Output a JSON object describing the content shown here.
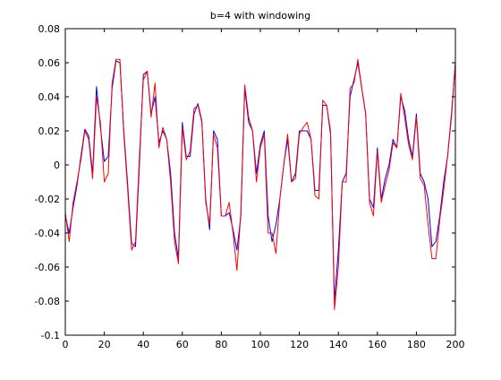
{
  "chart_data": {
    "type": "line",
    "title": "b=4 with windowing",
    "xlabel": "",
    "ylabel": "",
    "xlim": [
      0,
      200
    ],
    "ylim": [
      -0.1,
      0.08
    ],
    "xticks": [
      "0",
      "20",
      "40",
      "60",
      "80",
      "100",
      "120",
      "140",
      "160",
      "180",
      "200"
    ],
    "yticks": [
      "-0.1",
      "-0.08",
      "-0.06",
      "-0.04",
      "-0.02",
      "0",
      "0.02",
      "0.04",
      "0.06",
      "0.08"
    ],
    "grid": false,
    "legend": "none",
    "series": [
      {
        "color": "#0000ff",
        "x": [
          0,
          2,
          4,
          6,
          8,
          10,
          12,
          14,
          16,
          18,
          20,
          22,
          24,
          26,
          28,
          30,
          32,
          34,
          36,
          38,
          40,
          42,
          44,
          46,
          48,
          50,
          52,
          54,
          56,
          58,
          60,
          62,
          64,
          66,
          68,
          70,
          72,
          74,
          76,
          78,
          80,
          82,
          84,
          86,
          88,
          90,
          92,
          94,
          96,
          98,
          100,
          102,
          104,
          106,
          108,
          110,
          112,
          114,
          116,
          118,
          120,
          122,
          124,
          126,
          128,
          130,
          132,
          134,
          136,
          138,
          140,
          142,
          144,
          146,
          148,
          150,
          152,
          154,
          156,
          158,
          160,
          162,
          164,
          166,
          168,
          170,
          172,
          174,
          176,
          178,
          180,
          182,
          184,
          186,
          188,
          190,
          192,
          194,
          196,
          198,
          200
        ],
        "y": [
          -0.03,
          -0.04,
          -0.025,
          -0.012,
          0.005,
          0.021,
          0.017,
          -0.005,
          0.046,
          0.022,
          0.002,
          0.005,
          0.045,
          0.061,
          0.06,
          0.02,
          -0.012,
          -0.046,
          -0.048,
          0,
          0.053,
          0.055,
          0.03,
          0.04,
          0.013,
          0.02,
          0.015,
          -0.005,
          -0.04,
          -0.055,
          0.025,
          0.005,
          0.005,
          0.03,
          0.036,
          0.026,
          -0.02,
          -0.038,
          0.02,
          0.015,
          -0.03,
          -0.03,
          -0.028,
          -0.038,
          -0.05,
          -0.03,
          0.045,
          0.025,
          0.02,
          -0.005,
          0.012,
          0.02,
          -0.03,
          -0.045,
          -0.035,
          -0.02,
          0,
          0.015,
          -0.01,
          -0.005,
          0.02,
          0.02,
          0.02,
          0.015,
          -0.015,
          -0.015,
          0.035,
          0.035,
          0.018,
          -0.08,
          -0.05,
          -0.01,
          -0.005,
          0.04,
          0.05,
          0.06,
          0.045,
          0.03,
          -0.02,
          -0.025,
          0.01,
          -0.02,
          -0.008,
          0,
          0.015,
          0.01,
          0.04,
          0.032,
          0.015,
          0.005,
          0.03,
          -0.005,
          -0.01,
          -0.02,
          -0.048,
          -0.045,
          -0.03,
          -0.01,
          0.005,
          0.03,
          0.06
        ]
      },
      {
        "color": "#ff0000",
        "x": [
          0,
          2,
          4,
          6,
          8,
          10,
          12,
          14,
          16,
          18,
          20,
          22,
          24,
          26,
          28,
          30,
          32,
          34,
          36,
          38,
          40,
          42,
          44,
          46,
          48,
          50,
          52,
          54,
          56,
          58,
          60,
          62,
          64,
          66,
          68,
          70,
          72,
          74,
          76,
          78,
          80,
          82,
          84,
          86,
          88,
          90,
          92,
          94,
          96,
          98,
          100,
          102,
          104,
          106,
          108,
          110,
          112,
          114,
          116,
          118,
          120,
          122,
          124,
          126,
          128,
          130,
          132,
          134,
          136,
          138,
          140,
          142,
          144,
          146,
          148,
          150,
          152,
          154,
          156,
          158,
          160,
          162,
          164,
          166,
          168,
          170,
          172,
          174,
          176,
          178,
          180,
          182,
          184,
          186,
          188,
          190,
          192,
          194,
          196,
          198,
          200
        ],
        "y": [
          -0.028,
          -0.045,
          -0.022,
          -0.01,
          0.003,
          0.02,
          0.015,
          -0.008,
          0.04,
          0.025,
          -0.01,
          -0.005,
          0.048,
          0.062,
          0.062,
          0.018,
          -0.015,
          -0.05,
          -0.045,
          0.005,
          0.05,
          0.055,
          0.028,
          0.048,
          0.01,
          0.022,
          0.015,
          -0.01,
          -0.045,
          -0.058,
          0.022,
          0.003,
          0.008,
          0.033,
          0.035,
          0.025,
          -0.022,
          -0.035,
          0.018,
          0.01,
          -0.03,
          -0.03,
          -0.022,
          -0.04,
          -0.062,
          -0.028,
          0.047,
          0.028,
          0.02,
          -0.01,
          0.01,
          0.018,
          -0.04,
          -0.04,
          -0.052,
          -0.02,
          0,
          0.018,
          -0.01,
          -0.008,
          0.018,
          0.022,
          0.025,
          0.015,
          -0.018,
          -0.02,
          0.038,
          0.035,
          0.02,
          -0.085,
          -0.06,
          -0.01,
          -0.01,
          0.045,
          0.048,
          0.062,
          0.045,
          0.03,
          -0.022,
          -0.03,
          0.008,
          -0.022,
          -0.012,
          -0.003,
          0.013,
          0.01,
          0.042,
          0.028,
          0.012,
          0.003,
          0.028,
          -0.008,
          -0.012,
          -0.035,
          -0.055,
          -0.055,
          -0.032,
          -0.015,
          0.005,
          0.028,
          0.06
        ]
      }
    ]
  }
}
